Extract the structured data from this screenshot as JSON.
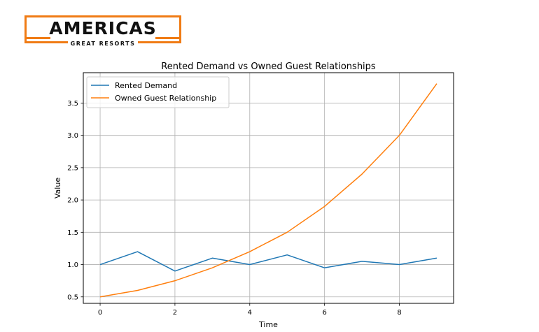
{
  "logo": {
    "word": "AMERICAS",
    "tagline": "GREAT RESORTS",
    "accent_color": "#f07b14"
  },
  "chart_data": {
    "type": "line",
    "title": "Rented Demand vs Owned Guest Relationships",
    "xlabel": "Time",
    "ylabel": "Value",
    "x": [
      0,
      1,
      2,
      3,
      4,
      5,
      6,
      7,
      8,
      9
    ],
    "xlim": [
      -0.45,
      9.45
    ],
    "ylim": [
      0.4,
      3.97
    ],
    "xticks": [
      0,
      2,
      4,
      6,
      8
    ],
    "yticks": [
      0.5,
      1.0,
      1.5,
      2.0,
      2.5,
      3.0,
      3.5
    ],
    "xtick_labels": [
      "0",
      "2",
      "4",
      "6",
      "8"
    ],
    "ytick_labels": [
      "0.5",
      "1.0",
      "1.5",
      "2.0",
      "2.5",
      "3.0",
      "3.5"
    ],
    "grid": true,
    "legend_position": "top-left",
    "series": [
      {
        "name": "Rented Demand",
        "color": "#1f77b4",
        "values": [
          1.0,
          1.2,
          0.9,
          1.1,
          1.0,
          1.15,
          0.95,
          1.05,
          1.0,
          1.1
        ]
      },
      {
        "name": "Owned Guest Relationship",
        "color": "#ff7f0e",
        "values": [
          0.5,
          0.6,
          0.75,
          0.95,
          1.2,
          1.5,
          1.9,
          2.4,
          3.0,
          3.8
        ]
      }
    ]
  }
}
